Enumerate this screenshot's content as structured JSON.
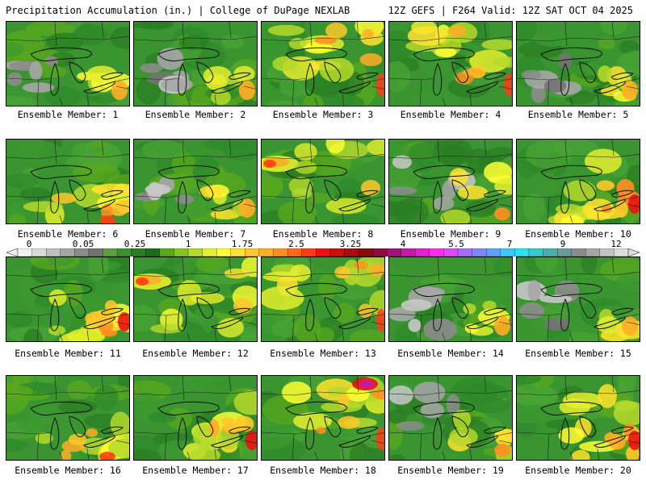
{
  "header": {
    "title": "Precipitation Accumulation (in.) | College of DuPage NEXLAB",
    "run_info": "12Z GEFS | F264 Valid: 12Z SAT OCT 04 2025"
  },
  "members": [
    {
      "label": "Ensemble Member: 1",
      "pattern": "dry-west"
    },
    {
      "label": "Ensemble Member: 2",
      "pattern": "dry-west"
    },
    {
      "label": "Ensemble Member: 3",
      "pattern": "wet-north"
    },
    {
      "label": "Ensemble Member: 4",
      "pattern": "wet-north"
    },
    {
      "label": "Ensemble Member: 5",
      "pattern": "dry-west"
    },
    {
      "label": "Ensemble Member: 6",
      "pattern": "wet-south"
    },
    {
      "label": "Ensemble Member: 7",
      "pattern": "dry-west"
    },
    {
      "label": "Ensemble Member: 8",
      "pattern": "wet-northwest"
    },
    {
      "label": "Ensemble Member: 9",
      "pattern": "mixed"
    },
    {
      "label": "Ensemble Member: 10",
      "pattern": "wet-east"
    },
    {
      "label": "Ensemble Member: 11",
      "pattern": "wet-east"
    },
    {
      "label": "Ensemble Member: 12",
      "pattern": "wet-northwest"
    },
    {
      "label": "Ensemble Member: 13",
      "pattern": "wet-north"
    },
    {
      "label": "Ensemble Member: 14",
      "pattern": "dry-west"
    },
    {
      "label": "Ensemble Member: 15",
      "pattern": "dry-west"
    },
    {
      "label": "Ensemble Member: 16",
      "pattern": "wet-south"
    },
    {
      "label": "Ensemble Member: 17",
      "pattern": "wet-east"
    },
    {
      "label": "Ensemble Member: 18",
      "pattern": "wet-north"
    },
    {
      "label": "Ensemble Member: 19",
      "pattern": "mixed"
    },
    {
      "label": "Ensemble Member: 20",
      "pattern": "wet-east"
    }
  ],
  "colorbar": {
    "ticks": [
      "0",
      "0.05",
      "0.25",
      "1",
      "1.75",
      "2.5",
      "3.25",
      "4",
      "5.5",
      "7",
      "9",
      "12"
    ],
    "colors": [
      "#f2f2f2",
      "#d9d9d9",
      "#bfbfbf",
      "#a6a6a6",
      "#8c8c8c",
      "#737373",
      "#5e9e42",
      "#3f8f2f",
      "#2a7d22",
      "#1f6b1c",
      "#5aa81e",
      "#86c226",
      "#b5d92c",
      "#e4ef2e",
      "#ffff33",
      "#ffe32e",
      "#ffc82a",
      "#ffad26",
      "#ff8f20",
      "#ff6a1a",
      "#ff3d14",
      "#ee1111",
      "#cc0e0e",
      "#a80d0d",
      "#880b0b",
      "#8a0d3e",
      "#a0127a",
      "#c41aa8",
      "#e022d0",
      "#ff2ee8",
      "#d94cf5",
      "#a66bff",
      "#7f86ff",
      "#5fa0ff",
      "#3fc7ff",
      "#2ee0f0",
      "#35c9c9",
      "#4aaeae",
      "#6b9a9a",
      "#8c8c8c",
      "#a6a6a6",
      "#c2c2c2",
      "#dcdcdc"
    ]
  }
}
